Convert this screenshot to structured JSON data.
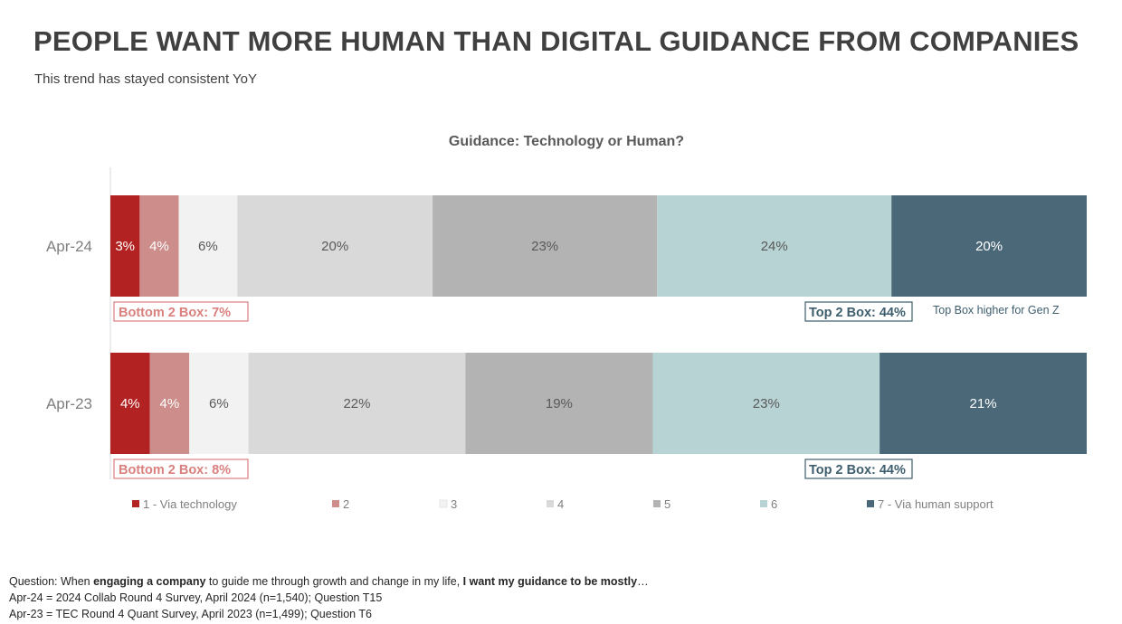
{
  "header": {
    "title": "PEOPLE WANT MORE HUMAN THAN DIGITAL GUIDANCE FROM COMPANIES",
    "subtitle": "This trend has stayed consistent YoY"
  },
  "chart_data": {
    "type": "bar",
    "orientation": "horizontal",
    "stacked": true,
    "title": "Guidance: Technology or Human?",
    "categories": [
      "Apr-24",
      "Apr-23"
    ],
    "series": [
      {
        "name": "1 - Via technology",
        "color": "#B22222",
        "label_color": "#FFFFFF",
        "values": [
          3,
          4
        ],
        "labels": [
          "3%",
          "4%"
        ]
      },
      {
        "name": "2",
        "color": "#CD8D8B",
        "label_color": "#FFFFFF",
        "values": [
          4,
          4
        ],
        "labels": [
          "4%",
          "4%"
        ]
      },
      {
        "name": "3",
        "color": "#F2F2F2",
        "label_color": "#595959",
        "values": [
          6,
          6
        ],
        "labels": [
          "6%",
          "6%"
        ]
      },
      {
        "name": "4",
        "color": "#D9D9D9",
        "label_color": "#595959",
        "values": [
          20,
          22
        ],
        "labels": [
          "20%",
          "22%"
        ]
      },
      {
        "name": "5",
        "color": "#B3B3B3",
        "label_color": "#595959",
        "values": [
          23,
          19
        ],
        "labels": [
          "23%",
          "19%"
        ]
      },
      {
        "name": "6",
        "color": "#B7D3D4",
        "label_color": "#595959",
        "values": [
          24,
          23
        ],
        "labels": [
          "24%",
          "23%"
        ]
      },
      {
        "name": "7 - Via human support",
        "color": "#4B6878",
        "label_color": "#FFFFFF",
        "values": [
          20,
          21
        ],
        "labels": [
          "20%",
          "21%"
        ]
      }
    ],
    "xlim": [
      0,
      100
    ],
    "annotations": [
      {
        "row": 0,
        "bottom_box": "Bottom 2 Box: 7%",
        "top_box": "Top 2 Box: 44%",
        "note": "Top Box higher for Gen Z"
      },
      {
        "row": 1,
        "bottom_box": "Bottom 2 Box: 8%",
        "top_box": "Top 2 Box: 44%",
        "note": ""
      }
    ],
    "bottom_box_color": "#D9807E",
    "top_box_color": "#3E5E6E",
    "legend_position": "bottom"
  },
  "footnotes": {
    "question_prefix": "Question: When ",
    "question_bold1": "engaging a company",
    "question_mid": " to guide me through growth and change in my life, ",
    "question_bold2": "I want my guidance to be mostly",
    "question_suffix": "…",
    "source1": "Apr-24 = 2024 Collab Round 4 Survey, April 2024 (n=1,540); Question T15",
    "source2": "Apr-23 = TEC Round 4 Quant Survey, April 2023 (n=1,499); Question T6"
  }
}
